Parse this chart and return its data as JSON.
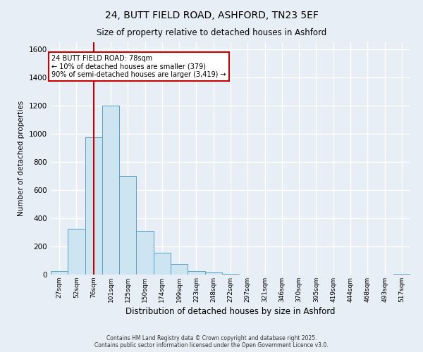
{
  "title": "24, BUTT FIELD ROAD, ASHFORD, TN23 5EF",
  "subtitle": "Size of property relative to detached houses in Ashford",
  "xlabel": "Distribution of detached houses by size in Ashford",
  "ylabel": "Number of detached properties",
  "bar_labels": [
    "27sqm",
    "52sqm",
    "76sqm",
    "101sqm",
    "125sqm",
    "150sqm",
    "174sqm",
    "199sqm",
    "223sqm",
    "248sqm",
    "272sqm",
    "297sqm",
    "321sqm",
    "346sqm",
    "370sqm",
    "395sqm",
    "419sqm",
    "444sqm",
    "468sqm",
    "493sqm",
    "517sqm"
  ],
  "bar_values": [
    25,
    325,
    975,
    1200,
    700,
    310,
    155,
    75,
    25,
    15,
    5,
    2,
    1,
    0,
    0,
    0,
    0,
    0,
    0,
    0,
    5
  ],
  "bar_color": "#cce5f0",
  "bar_edge_color": "#5b9fc7",
  "vline_x_idx": 2,
  "vline_color": "#cc0000",
  "ylim": [
    0,
    1650
  ],
  "yticks": [
    0,
    200,
    400,
    600,
    800,
    1000,
    1200,
    1400,
    1600
  ],
  "annotation_title": "24 BUTT FIELD ROAD: 78sqm",
  "annotation_line1": "← 10% of detached houses are smaller (379)",
  "annotation_line2": "90% of semi-detached houses are larger (3,419) →",
  "annotation_box_color": "#ffffff",
  "annotation_box_edge": "#cc0000",
  "background_color": "#e8eef5",
  "grid_color": "#ffffff",
  "footer1": "Contains HM Land Registry data © Crown copyright and database right 2025.",
  "footer2": "Contains public sector information licensed under the Open Government Licence v3.0."
}
